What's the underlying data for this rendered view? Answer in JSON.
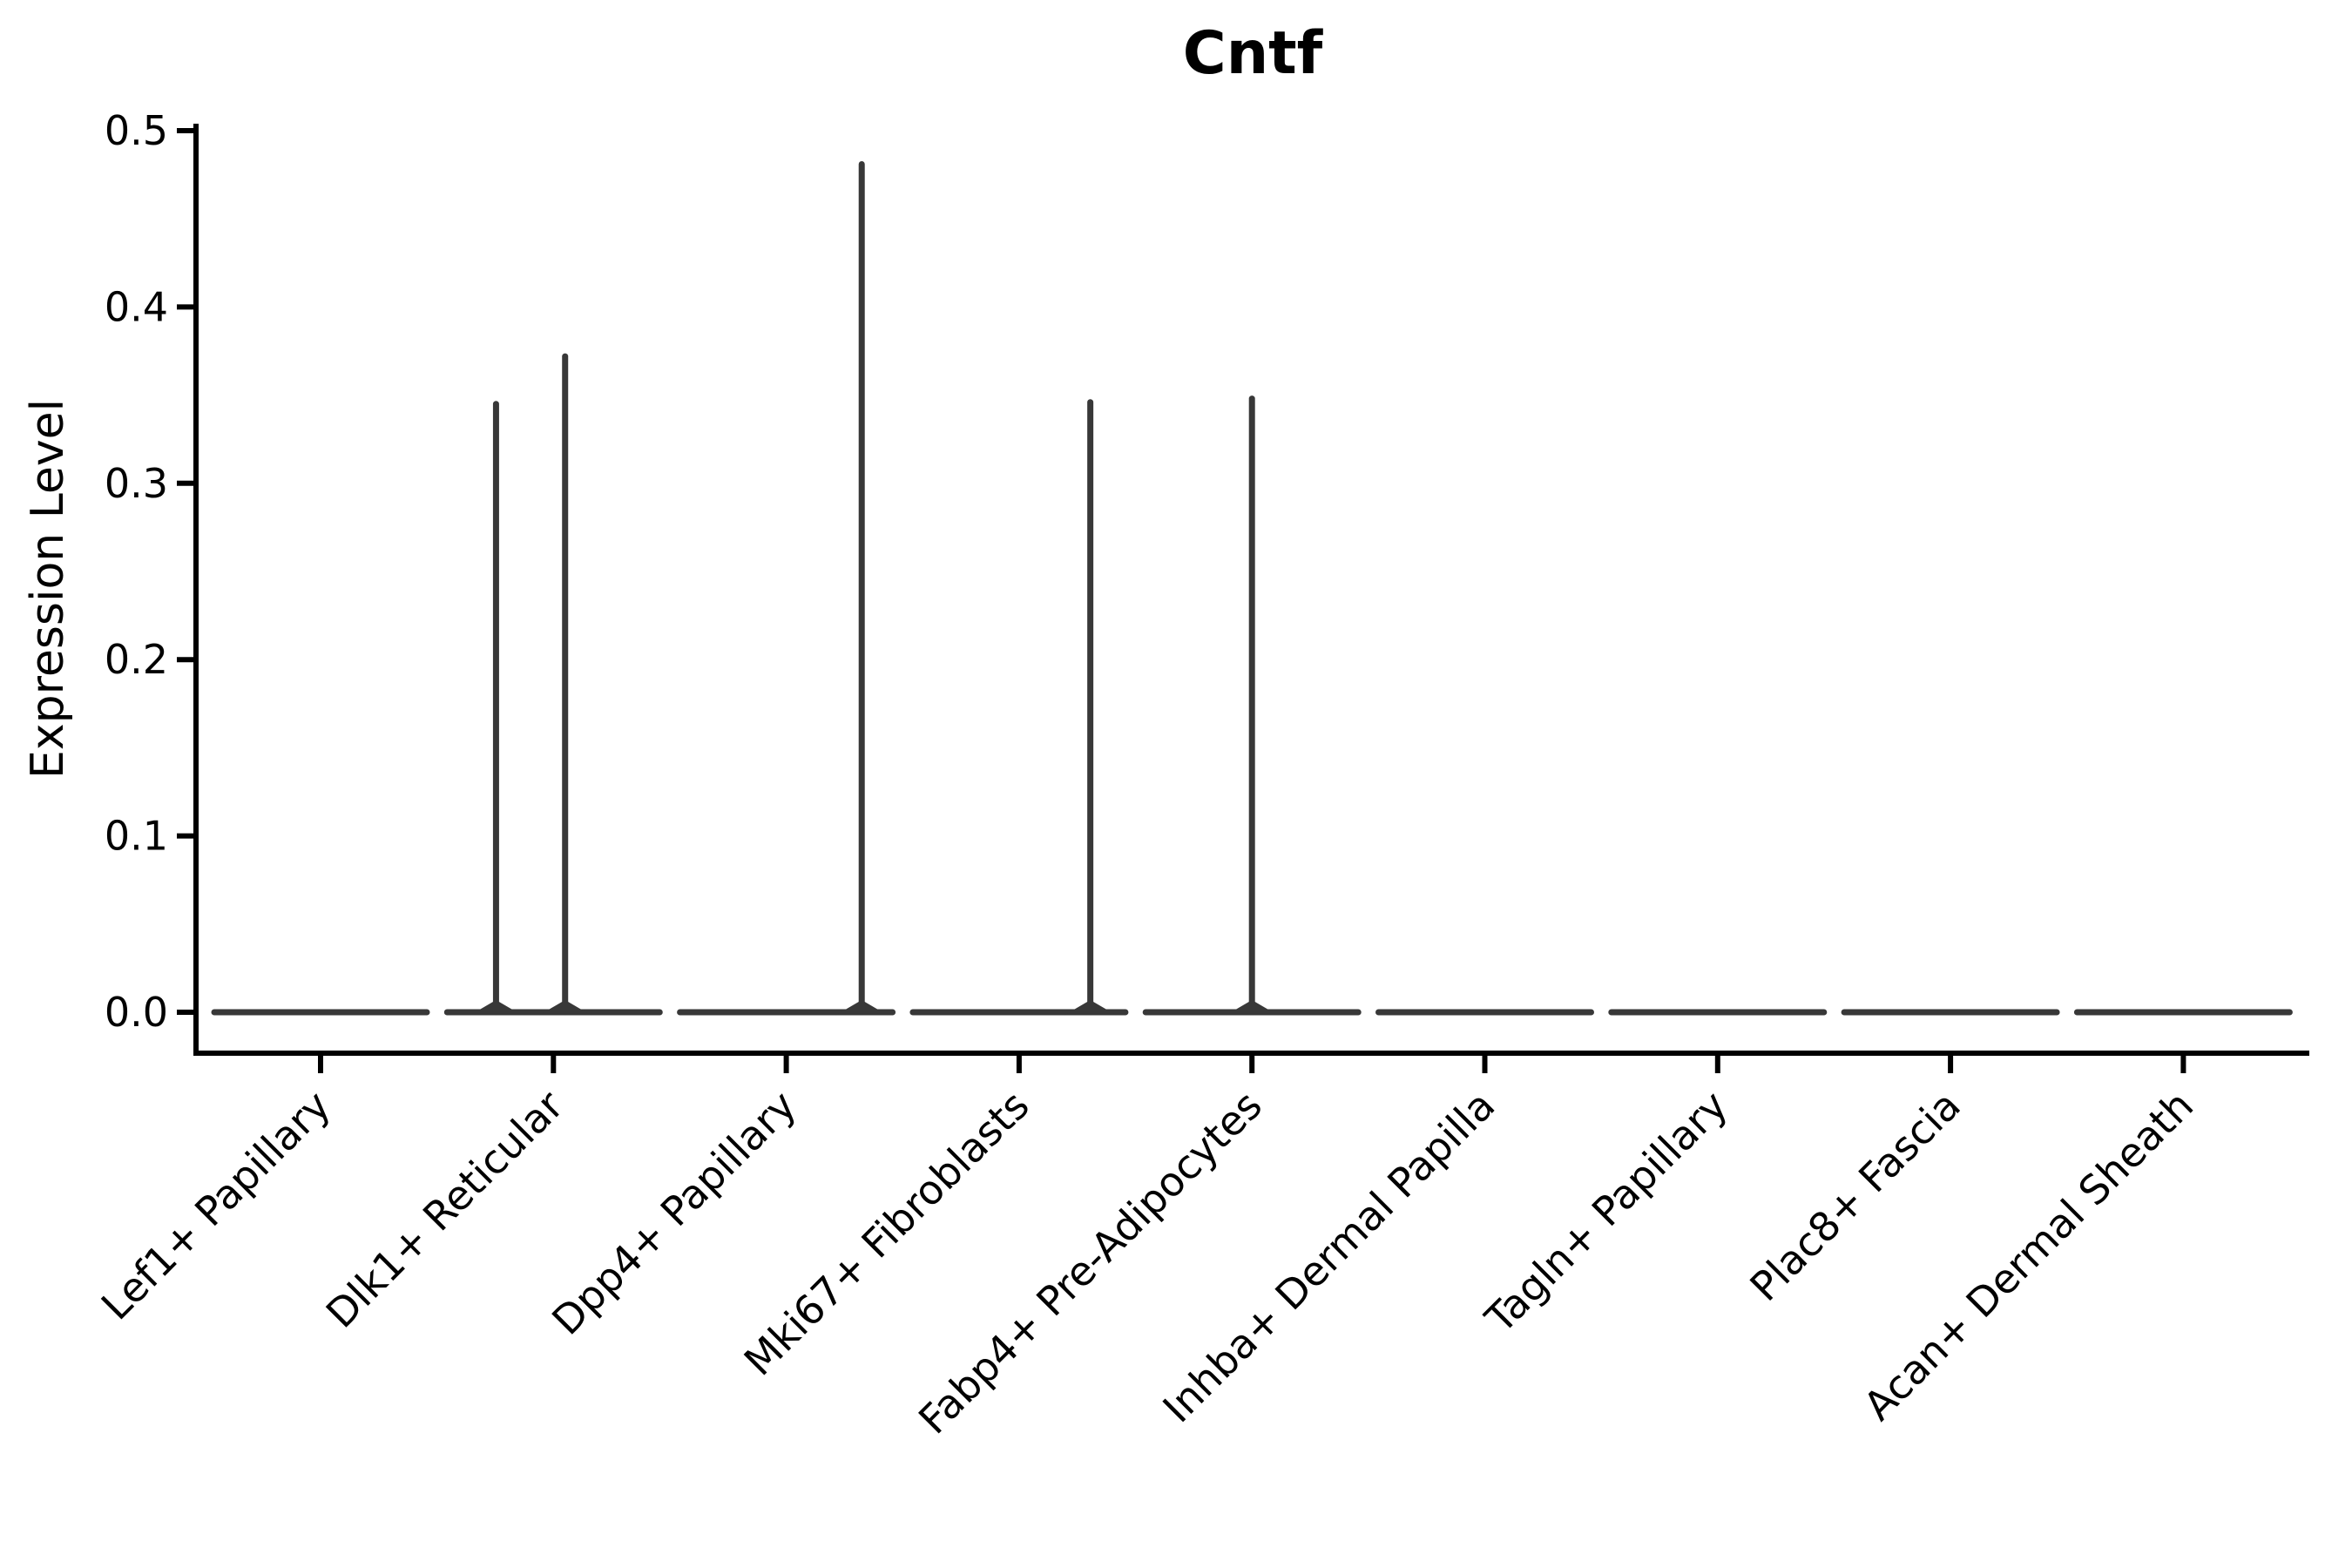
{
  "figure": {
    "background": "#ffffff",
    "axis_color": "#000000",
    "violin_color": "#383838"
  },
  "chart_data": {
    "type": "violin",
    "title": "Cntf",
    "xlabel": "",
    "ylabel": "Expression Level",
    "ylim": [
      -0.023,
      0.504
    ],
    "grid": false,
    "legend": "none",
    "yticks": [
      0.0,
      0.1,
      0.2,
      0.3,
      0.4,
      0.5
    ],
    "ytick_labels": [
      "0.0",
      "0.1",
      "0.2",
      "0.3",
      "0.4",
      "0.5"
    ],
    "categories": [
      "Lef1+ Papillary",
      "Dlk1+ Reticular",
      "Dpp4+ Papillary",
      "Mki67+ Fibroblasts",
      "Fabp4+ Pre-Adipocytes",
      "Inhba+ Dermal Papilla",
      "Tagln+ Papillary",
      "Plac8+ Fascia",
      "Acan+ Dermal Sheath"
    ],
    "violins": [
      {
        "category": "Lef1+ Papillary",
        "baseline_value": 0.0,
        "peaks": []
      },
      {
        "category": "Dlk1+ Reticular",
        "baseline_value": 0.0,
        "peaks": [
          {
            "value": 0.345,
            "offset": -0.54
          },
          {
            "value": 0.372,
            "offset": 0.11
          }
        ]
      },
      {
        "category": "Dpp4+ Papillary",
        "baseline_value": 0.0,
        "peaks": [
          {
            "value": 0.481,
            "offset": 0.71
          }
        ]
      },
      {
        "category": "Mki67+ Fibroblasts",
        "baseline_value": 0.0,
        "peaks": [
          {
            "value": 0.346,
            "offset": 0.67
          }
        ]
      },
      {
        "category": "Fabp4+ Pre-Adipocytes",
        "baseline_value": 0.0,
        "peaks": [
          {
            "value": 0.348,
            "offset": 0.0
          }
        ]
      },
      {
        "category": "Inhba+ Dermal Papilla",
        "baseline_value": 0.0,
        "peaks": []
      },
      {
        "category": "Tagln+ Papillary",
        "baseline_value": 0.0,
        "peaks": []
      },
      {
        "category": "Plac8+ Fascia",
        "baseline_value": 0.0,
        "peaks": []
      },
      {
        "category": "Acan+ Dermal Sheath",
        "baseline_value": 0.0,
        "peaks": []
      }
    ]
  }
}
